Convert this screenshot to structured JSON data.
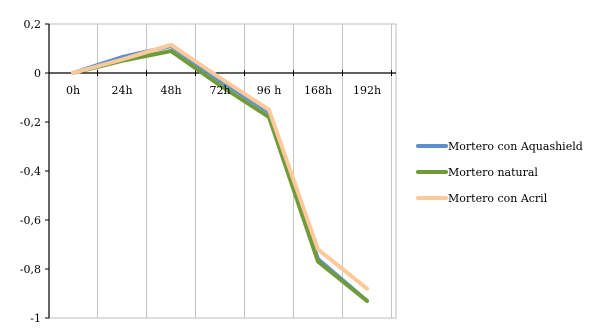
{
  "chart_data": {
    "type": "line",
    "title": "",
    "xlabel": "",
    "ylabel": "",
    "categories": [
      "0h",
      "24h",
      "48h",
      "72h",
      "96 h",
      "168h",
      "192h"
    ],
    "y_ticks": [
      "0,2",
      "0",
      "-0,2",
      "-0,4",
      "-0,6",
      "-0,8",
      "-1"
    ],
    "ylim": [
      -1,
      0.2
    ],
    "grid": "vertical",
    "legend_position": "right",
    "series": [
      {
        "name": "Mortero con Aquashield",
        "color": "#5b8fcf",
        "values": [
          0,
          0.065,
          0.11,
          -0.03,
          -0.16,
          -0.76,
          -0.93
        ]
      },
      {
        "name": "Mortero natural",
        "color": "#6f9b3a",
        "values": [
          0,
          0.05,
          0.09,
          -0.05,
          -0.18,
          -0.77,
          -0.93
        ]
      },
      {
        "name": "Mortero con Acril",
        "color": "#fbc99a",
        "values": [
          0,
          0.055,
          0.115,
          -0.02,
          -0.15,
          -0.72,
          -0.88
        ]
      }
    ]
  }
}
